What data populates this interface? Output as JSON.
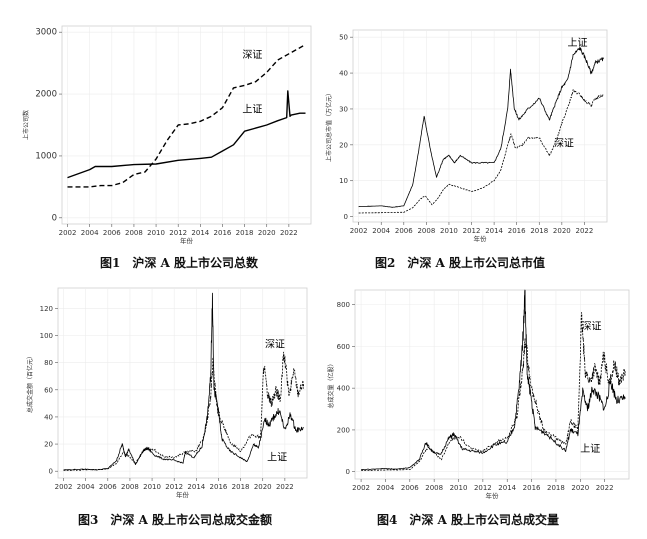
{
  "chart_data": [
    {
      "type": "line",
      "caption": "图1　沪深 A 股上市公司总数",
      "xlabel": "年份",
      "ylabel": "上市公司数",
      "xlim": [
        2001.5,
        2024
      ],
      "ylim": [
        -100,
        3100
      ],
      "xticks": [
        2002,
        2004,
        2006,
        2008,
        2010,
        2012,
        2014,
        2016,
        2018,
        2020,
        2022
      ],
      "yticks": [
        0,
        1000,
        2000,
        3000
      ],
      "grid": true,
      "series": [
        {
          "name": "深证",
          "style": "dashed",
          "x": [
            2002,
            2004,
            2005,
            2006,
            2007,
            2008,
            2009,
            2010,
            2011,
            2012,
            2013,
            2014,
            2015,
            2016,
            2017,
            2018,
            2019,
            2020,
            2021,
            2022,
            2023.5
          ],
          "y": [
            500,
            500,
            520,
            520,
            570,
            700,
            740,
            950,
            1250,
            1500,
            1520,
            1560,
            1640,
            1780,
            2100,
            2140,
            2200,
            2350,
            2550,
            2650,
            2800
          ]
        },
        {
          "name": "上证",
          "style": "solid",
          "x": [
            2002,
            2004,
            2004.5,
            2006,
            2008,
            2010,
            2012,
            2014,
            2015,
            2016,
            2017,
            2018,
            2019,
            2020,
            2021,
            2021.8,
            2021.9,
            2022.1,
            2022.2,
            2023,
            2023.5
          ],
          "y": [
            650,
            780,
            830,
            830,
            860,
            870,
            930,
            960,
            980,
            1080,
            1180,
            1400,
            1450,
            1500,
            1570,
            1620,
            2050,
            1640,
            1660,
            1690,
            1690
          ]
        }
      ],
      "annotations": [
        {
          "text": "深证",
          "x": 2017.8,
          "y": 2580
        },
        {
          "text": "上证",
          "x": 2017.8,
          "y": 1700
        }
      ]
    },
    {
      "type": "line",
      "caption": "图2　沪深 A 股上市公司总市值",
      "xlabel": "年份",
      "ylabel": "上市公司总市值（万亿元）",
      "xlim": [
        2001.5,
        2024
      ],
      "ylim": [
        -1.5,
        52
      ],
      "xticks": [
        2002,
        2004,
        2006,
        2008,
        2010,
        2012,
        2014,
        2016,
        2018,
        2020,
        2022
      ],
      "yticks": [
        0,
        10,
        20,
        30,
        40,
        50
      ],
      "grid": true,
      "series": [
        {
          "name": "上证",
          "style": "solid",
          "x": [
            2002,
            2004,
            2005,
            2006,
            2006.8,
            2007.3,
            2007.8,
            2008.4,
            2008.9,
            2009.5,
            2010,
            2010.5,
            2011,
            2012,
            2013,
            2014,
            2014.6,
            2015.2,
            2015.45,
            2015.8,
            2016.2,
            2017,
            2018,
            2018.9,
            2019.5,
            2020,
            2020.5,
            2021,
            2021.6,
            2022.1,
            2022.6,
            2023,
            2023.7
          ],
          "y": [
            2.8,
            3.0,
            2.6,
            3.0,
            9,
            18,
            28,
            18,
            11,
            16,
            17,
            15,
            17,
            15,
            15,
            15,
            19,
            30,
            41,
            30,
            27,
            30,
            33,
            27,
            32,
            36,
            38,
            45,
            47,
            44,
            40,
            43,
            44
          ]
        },
        {
          "name": "深证",
          "style": "dashed",
          "x": [
            2002,
            2004,
            2006,
            2006.8,
            2007.5,
            2007.9,
            2008.5,
            2009,
            2009.5,
            2010,
            2011,
            2012,
            2013,
            2014,
            2014.6,
            2015.3,
            2015.5,
            2015.9,
            2016.5,
            2017,
            2018,
            2018.9,
            2019.5,
            2020,
            2020.6,
            2021,
            2021.6,
            2022.1,
            2022.6,
            2023,
            2023.7
          ],
          "y": [
            1.0,
            1.1,
            1.2,
            2.5,
            5,
            5.8,
            3.3,
            5,
            7.5,
            9,
            8,
            7,
            8,
            10,
            13,
            21,
            23,
            19,
            20,
            22,
            22,
            17,
            21,
            26,
            31,
            35,
            34,
            32,
            31,
            33,
            34
          ]
        }
      ],
      "annotations": [
        {
          "text": "上证",
          "x": 2020.5,
          "y": 47.5
        },
        {
          "text": "深证",
          "x": 2019.3,
          "y": 19.5
        }
      ]
    },
    {
      "type": "line",
      "caption": "图3　沪深 A 股上市公司总成交金额",
      "xlabel": "年份",
      "ylabel": "总成交金额（百亿元）",
      "xlim": [
        2001.5,
        2024
      ],
      "ylim": [
        -5,
        135
      ],
      "xticks": [
        2002,
        2004,
        2006,
        2008,
        2010,
        2012,
        2014,
        2016,
        2018,
        2020,
        2022
      ],
      "yticks": [
        0,
        20,
        40,
        60,
        80,
        100,
        120
      ],
      "grid": true,
      "series": [
        {
          "name": "上证",
          "style": "solid",
          "x": [
            2002,
            2004,
            2005,
            2006,
            2006.8,
            2007.3,
            2007.6,
            2007.9,
            2008.5,
            2009.2,
            2009.6,
            2010.2,
            2011,
            2012,
            2012.8,
            2013,
            2013.8,
            2014.5,
            2015.0,
            2015.3,
            2015.45,
            2015.6,
            2015.9,
            2016.3,
            2017,
            2018,
            2018.6,
            2019.2,
            2019.6,
            2020.2,
            2020.6,
            2021,
            2021.5,
            2022,
            2022.5,
            2023,
            2023.7
          ],
          "y": [
            1,
            1.5,
            1,
            2,
            8,
            20,
            11,
            16,
            5,
            15,
            17,
            12,
            9,
            8,
            6,
            14,
            10,
            18,
            40,
            70,
            130,
            60,
            50,
            24,
            15,
            10,
            7,
            20,
            17,
            38,
            34,
            40,
            45,
            30,
            42,
            30,
            32
          ]
        },
        {
          "name": "深证",
          "style": "dashed",
          "x": [
            2002,
            2004,
            2006,
            2006.8,
            2007.4,
            2007.9,
            2008.5,
            2009.3,
            2010,
            2011,
            2012,
            2013,
            2014,
            2014.8,
            2015.3,
            2015.5,
            2015.9,
            2016.5,
            2017,
            2018,
            2019,
            2019.8,
            2020.1,
            2020.4,
            2020.8,
            2021.2,
            2021.6,
            2021.9,
            2022.4,
            2022.8,
            2023.2,
            2023.7
          ],
          "y": [
            0.5,
            1,
            1.5,
            6,
            14,
            11,
            6,
            16,
            17,
            11,
            10,
            14,
            15,
            28,
            55,
            80,
            45,
            32,
            22,
            15,
            27,
            25,
            80,
            58,
            50,
            60,
            52,
            88,
            55,
            75,
            58,
            65
          ]
        }
      ],
      "annotations": [
        {
          "text": "深证",
          "x": 2020.2,
          "y": 91
        },
        {
          "text": "上证",
          "x": 2020.4,
          "y": 8
        }
      ]
    },
    {
      "type": "line",
      "caption": "图4　沪深 A 股上市公司总成交量",
      "xlabel": "年份",
      "ylabel": "总成交量（亿股）",
      "xlim": [
        2001.5,
        2024
      ],
      "ylim": [
        -35,
        870
      ],
      "xticks": [
        2002,
        2004,
        2006,
        2008,
        2010,
        2012,
        2014,
        2016,
        2018,
        2020,
        2022
      ],
      "yticks": [
        0,
        200,
        400,
        600,
        800
      ],
      "grid": true,
      "series": [
        {
          "name": "上证",
          "style": "solid",
          "x": [
            2002,
            2004,
            2005,
            2006,
            2006.8,
            2007.3,
            2007.8,
            2008.5,
            2009.2,
            2009.6,
            2010.3,
            2011,
            2012,
            2013,
            2014,
            2014.6,
            2015.0,
            2015.3,
            2015.45,
            2015.65,
            2015.9,
            2016.3,
            2017,
            2018,
            2018.8,
            2019.2,
            2019.8,
            2020.2,
            2020.6,
            2021,
            2021.5,
            2022,
            2022.5,
            2023,
            2023.7
          ],
          "y": [
            10,
            15,
            12,
            20,
            60,
            140,
            100,
            80,
            160,
            180,
            110,
            100,
            90,
            130,
            140,
            220,
            420,
            650,
            860,
            450,
            380,
            210,
            190,
            140,
            100,
            200,
            180,
            380,
            300,
            400,
            360,
            300,
            430,
            340,
            350
          ]
        },
        {
          "name": "深证",
          "style": "dashed",
          "x": [
            2002,
            2004,
            2006,
            2006.8,
            2007.5,
            2008,
            2008.6,
            2009.3,
            2010,
            2011,
            2012,
            2013,
            2014,
            2014.8,
            2015.3,
            2015.5,
            2015.9,
            2016.5,
            2017,
            2018,
            2018.8,
            2019.2,
            2019.8,
            2020.1,
            2020.4,
            2020.8,
            2021.2,
            2021.6,
            2021.9,
            2022.4,
            2022.8,
            2023.2,
            2023.7
          ],
          "y": [
            5,
            8,
            10,
            50,
            120,
            90,
            60,
            150,
            170,
            110,
            100,
            140,
            160,
            260,
            500,
            640,
            420,
            300,
            200,
            160,
            130,
            240,
            200,
            740,
            480,
            430,
            500,
            420,
            560,
            420,
            520,
            430,
            480
          ]
        }
      ],
      "annotations": [
        {
          "text": "深证",
          "x": 2020.1,
          "y": 680
        },
        {
          "text": "上证",
          "x": 2020.0,
          "y": 95
        }
      ]
    }
  ]
}
